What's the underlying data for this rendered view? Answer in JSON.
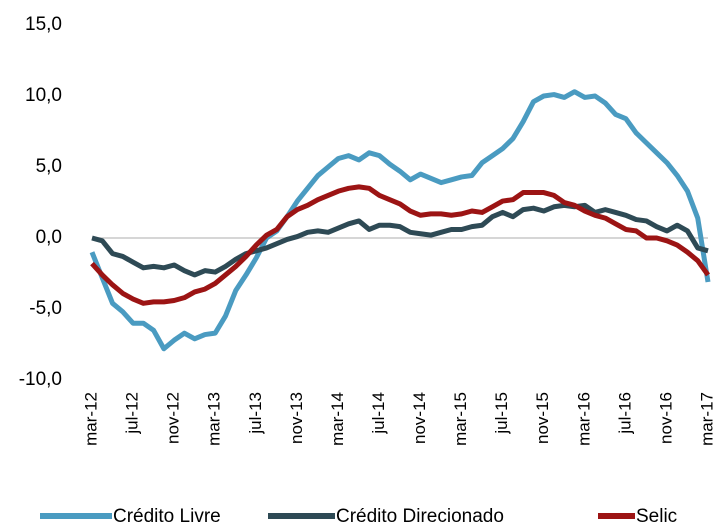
{
  "chart_data": {
    "type": "line",
    "categories": [
      "mar-12",
      null,
      null,
      null,
      "jul-12",
      null,
      null,
      null,
      "nov-12",
      null,
      null,
      null,
      "mar-13",
      null,
      null,
      null,
      "jul-13",
      null,
      null,
      null,
      "nov-13",
      null,
      null,
      null,
      "mar-14",
      null,
      null,
      null,
      "jul-14",
      null,
      null,
      null,
      "nov-14",
      null,
      null,
      null,
      "mar-15",
      null,
      null,
      null,
      "jul-15",
      null,
      null,
      null,
      "nov-15",
      null,
      null,
      null,
      "mar-16",
      null,
      null,
      null,
      "jul-16",
      null,
      null,
      null,
      "nov-16",
      null,
      null,
      null,
      "mar-17"
    ],
    "series": [
      {
        "name": "Crédito Livre",
        "color": "#4a9bc1",
        "values": [
          -1,
          -2.8,
          -4.6,
          -5.2,
          -6,
          -6,
          -6.5,
          -7.8,
          -7.2,
          -6.7,
          -7.1,
          -6.8,
          -6.7,
          -5.5,
          -3.7,
          -2.6,
          -1.4,
          0,
          0.5,
          1.5,
          2.6,
          3.5,
          4.4,
          5,
          5.6,
          5.8,
          5.5,
          6,
          5.8,
          5.2,
          4.7,
          4.1,
          4.5,
          4.2,
          3.9,
          4.1,
          4.3,
          4.4,
          5.3,
          5.8,
          6.3,
          7,
          8.2,
          9.6,
          10,
          10.1,
          9.9,
          10.3,
          9.9,
          10,
          9.5,
          8.7,
          8.4,
          7.4,
          6.7,
          6,
          5.3,
          4.4,
          3.3,
          1.4,
          -3.1
        ]
      },
      {
        "name": "Crédito Direcionado",
        "color": "#2e4a55",
        "values": [
          0,
          -0.2,
          -1.1,
          -1.3,
          -1.7,
          -2.1,
          -2,
          -2.1,
          -1.9,
          -2.3,
          -2.6,
          -2.3,
          -2.4,
          -2,
          -1.5,
          -1.1,
          -0.9,
          -0.7,
          -0.4,
          -0.1,
          0.1,
          0.4,
          0.5,
          0.4,
          0.7,
          1,
          1.2,
          0.6,
          0.9,
          0.9,
          0.8,
          0.4,
          0.3,
          0.2,
          0.4,
          0.6,
          0.6,
          0.8,
          0.9,
          1.5,
          1.8,
          1.5,
          2,
          2.1,
          1.9,
          2.2,
          2.3,
          2.2,
          2.3,
          1.8,
          2,
          1.8,
          1.6,
          1.3,
          1.2,
          0.8,
          0.5,
          0.9,
          0.5,
          -0.7,
          -0.9
        ]
      },
      {
        "name": "Selic",
        "color": "#9c1414",
        "values": [
          -1.8,
          -2.6,
          -3.3,
          -3.9,
          -4.3,
          -4.6,
          -4.5,
          -4.5,
          -4.4,
          -4.2,
          -3.8,
          -3.6,
          -3.2,
          -2.6,
          -2,
          -1.3,
          -0.5,
          0.2,
          0.6,
          1.5,
          2,
          2.3,
          2.7,
          3,
          3.3,
          3.5,
          3.6,
          3.5,
          3,
          2.7,
          2.4,
          1.9,
          1.6,
          1.7,
          1.7,
          1.6,
          1.7,
          1.9,
          1.8,
          2.2,
          2.6,
          2.7,
          3.2,
          3.2,
          3.2,
          3,
          2.5,
          2.3,
          1.9,
          1.6,
          1.4,
          1,
          0.6,
          0.5,
          0,
          0,
          -0.2,
          -0.5,
          -1,
          -1.6,
          -2.6
        ]
      }
    ],
    "ylim": [
      -10,
      15
    ],
    "yticks": [
      {
        "value": -10,
        "label": "-10,0"
      },
      {
        "value": -5,
        "label": "-5,0"
      },
      {
        "value": 0,
        "label": "0,0"
      },
      {
        "value": 5,
        "label": "5,0"
      },
      {
        "value": 10,
        "label": "10,0"
      },
      {
        "value": 15,
        "label": "15,0"
      }
    ],
    "legend": "bottom"
  }
}
